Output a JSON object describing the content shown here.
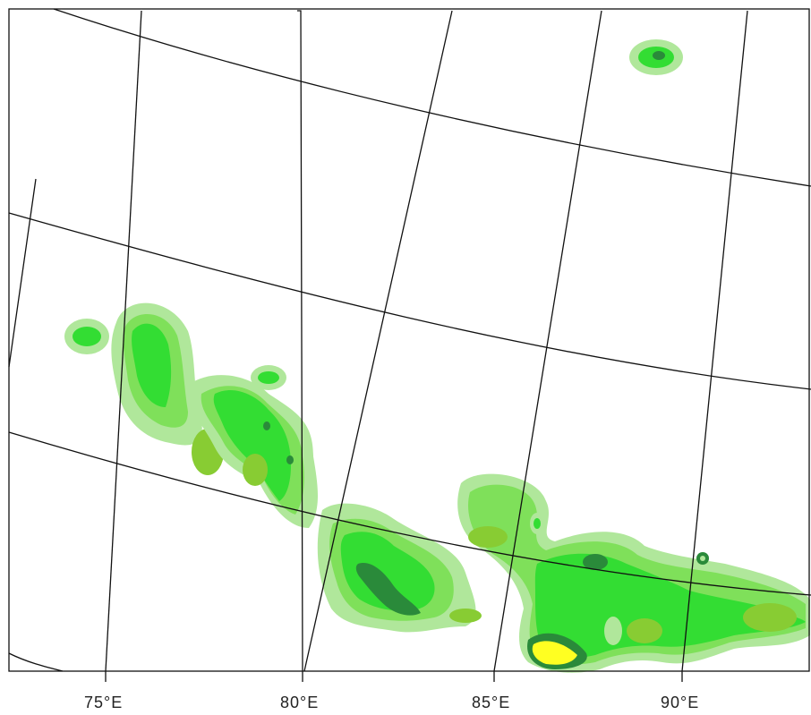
{
  "map": {
    "longitude_labels": [
      "75°E",
      "80°E",
      "85°E",
      "90°E"
    ],
    "colors": {
      "background": "#ffffff",
      "gridline": "#111111",
      "contour_level_1": "#b0e79b",
      "contour_level_2": "#7fe05a",
      "contour_level_3": "#33dd33",
      "contour_level_4": "#88cc33",
      "contour_level_5": "#2a8a3a",
      "contour_level_6": "#ffff22"
    }
  }
}
